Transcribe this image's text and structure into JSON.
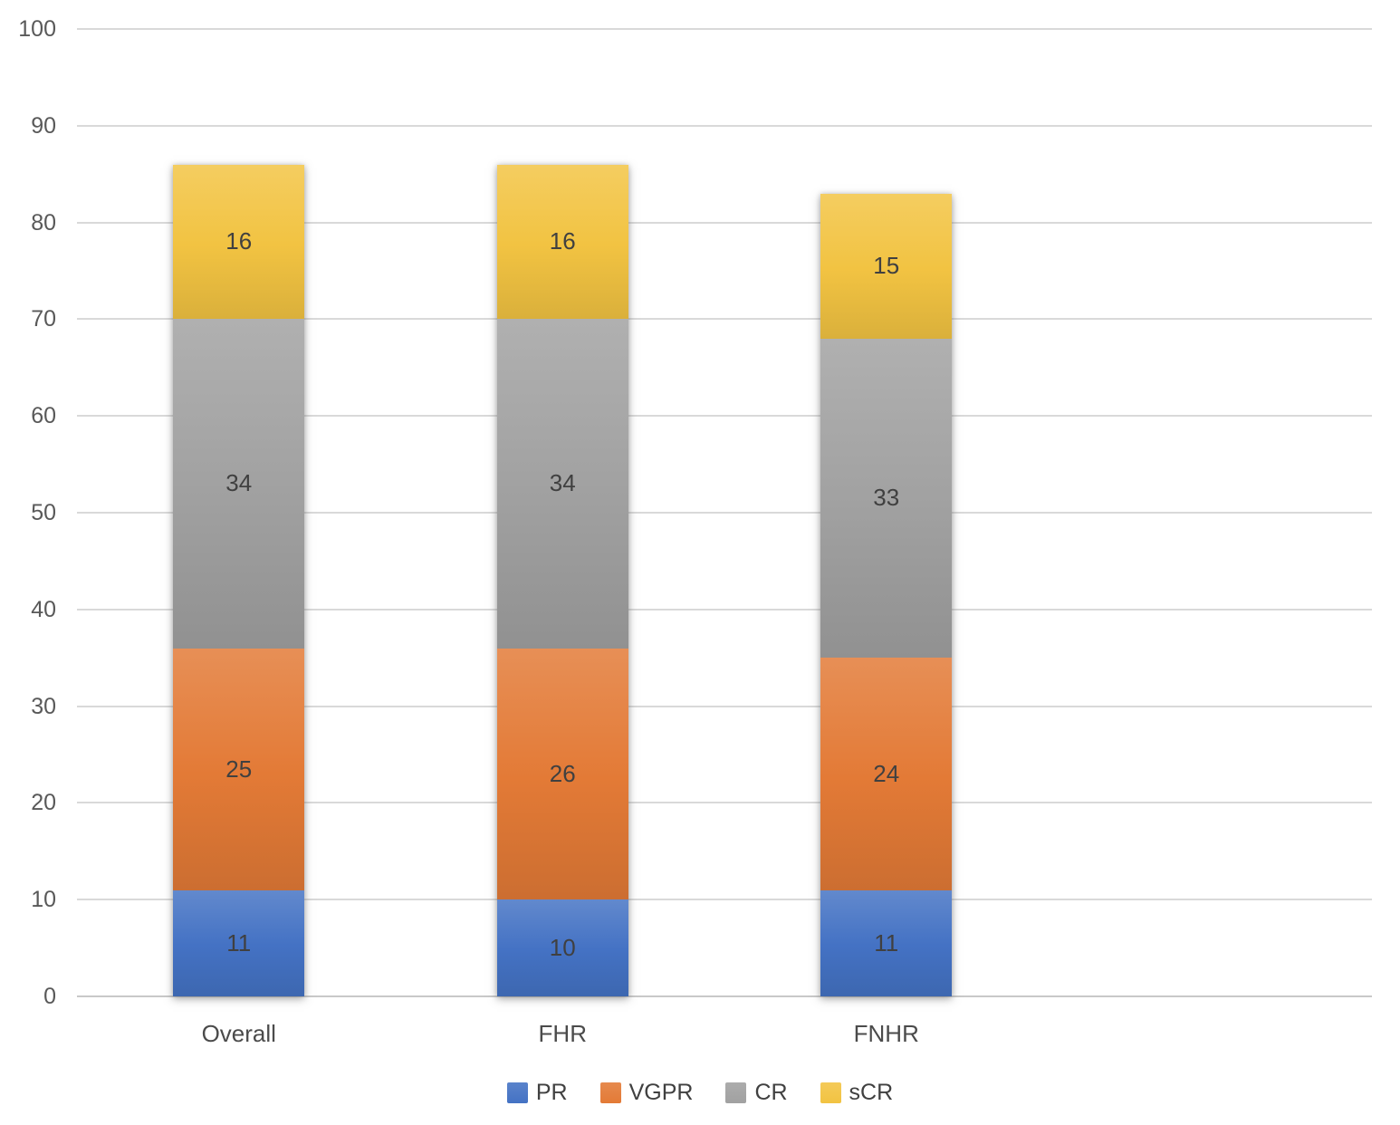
{
  "chart_data": {
    "type": "bar",
    "stacked": true,
    "title": "",
    "xlabel": "",
    "ylabel": "",
    "categories": [
      "Overall",
      "FHR",
      "FNHR"
    ],
    "series": [
      {
        "name": "PR",
        "color": "#4472C4",
        "values": [
          11,
          10,
          11
        ]
      },
      {
        "name": "VGPR",
        "color": "#E37A36",
        "values": [
          25,
          26,
          24
        ]
      },
      {
        "name": "CR",
        "color": "#A1A1A1",
        "values": [
          34,
          34,
          33
        ]
      },
      {
        "name": "sCR",
        "color": "#F2C342",
        "values": [
          16,
          16,
          15
        ]
      }
    ],
    "totals": [
      86,
      86,
      83
    ],
    "ylim": [
      0,
      100
    ],
    "yticks": [
      0,
      10,
      20,
      30,
      40,
      50,
      60,
      70,
      80,
      90,
      100
    ],
    "grid": true,
    "data_labels": true,
    "legend_position": "bottom",
    "category_slots": 4
  },
  "colors": {
    "background": "#FFFFFF",
    "gridline": "#D9D9D9",
    "axis_line": "#C9C9C9",
    "tick_label": "#595959",
    "data_label": "#404040",
    "category_label": "#4B4B4B",
    "legend_label": "#404040"
  }
}
